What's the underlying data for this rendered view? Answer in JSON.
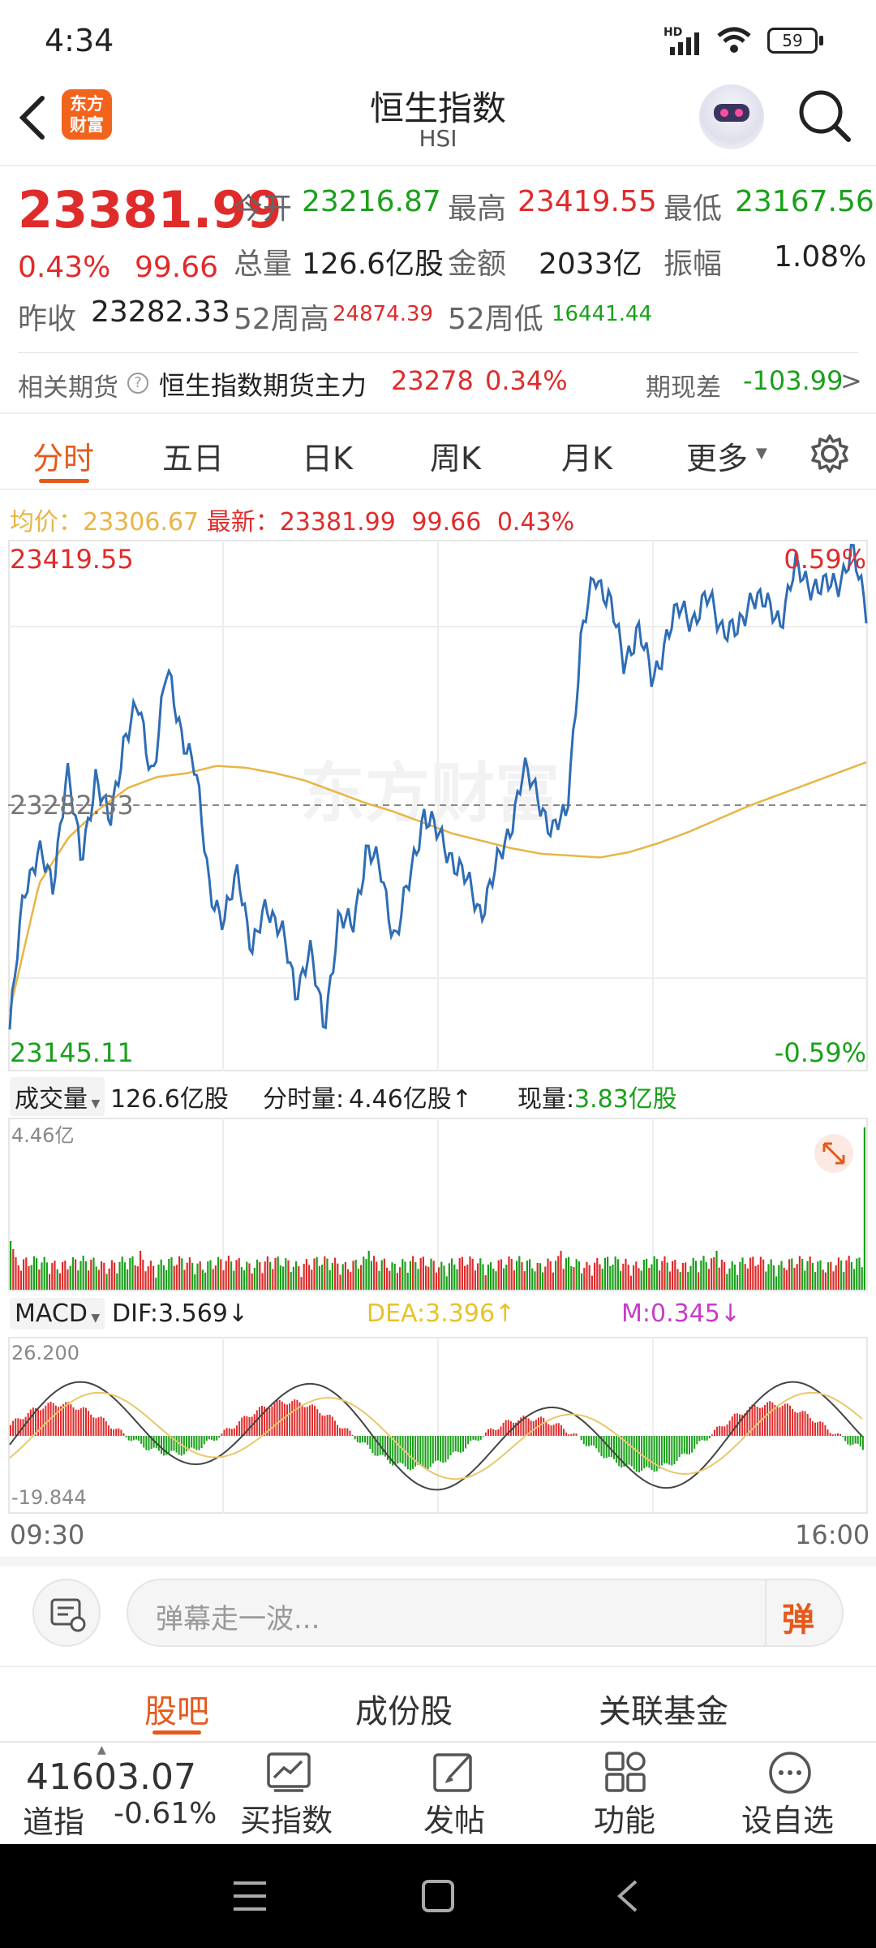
{
  "status": {
    "time": "4:34",
    "network": "HD",
    "battery": "59"
  },
  "header": {
    "title": "恒生指数",
    "subtitle": "HSI",
    "brand_logo_text": "东方财富"
  },
  "quote": {
    "price": "23381.99",
    "change_pct": "0.43%",
    "change": "99.66",
    "open_label": "今开",
    "open": "23216.87",
    "high_label": "最高",
    "high": "23419.55",
    "low_label": "最低",
    "low": "23167.56",
    "volume_label": "总量",
    "volume": "126.6亿股",
    "amount_label": "金额",
    "amount": "2033亿",
    "amplitude_label": "振幅",
    "amplitude": "1.08%",
    "prev_close_label": "昨收",
    "prev_close": "23282.33",
    "w52_high_label": "52周高",
    "w52_high": "24874.39",
    "w52_low_label": "52周低",
    "w52_low": "16441.44"
  },
  "futures": {
    "label": "相关期货",
    "help_icon": "question-circle-icon",
    "name": "恒生指数期货主力",
    "price": "23278",
    "pct": "0.34%",
    "basis_label": "期现差",
    "basis": "-103.99",
    "arrow": ">"
  },
  "tabs": [
    {
      "label": "分时"
    },
    {
      "label": "五日"
    },
    {
      "label": "日K"
    },
    {
      "label": "周K"
    },
    {
      "label": "月K"
    },
    {
      "label": "更多"
    }
  ],
  "info_line": {
    "avg_label": "均价：",
    "avg": "23306.67",
    "latest_label": "最新：",
    "latest": "23381.99",
    "change": "99.66",
    "pct": "0.43%"
  },
  "chart_labels": {
    "top_left": "23419.55",
    "top_right": "0.59%",
    "mid": "23282.33",
    "bottom_left": "23145.11",
    "bottom_right": "-0.59%",
    "watermark": "东方财富"
  },
  "volume_bar": {
    "selector": "成交量",
    "total": "126.6亿股",
    "minute_label": "分时量:",
    "minute": "4.46亿股↑",
    "current_label": "现量:",
    "current": "3.83亿股",
    "max_label": "4.46亿"
  },
  "macd": {
    "selector": "MACD",
    "dif": "DIF:3.569↓",
    "dea": "DEA:3.396↑",
    "m": "M:0.345↓",
    "max": "26.200",
    "min": "-19.844"
  },
  "time_axis": {
    "start": "09:30",
    "end": "16:00"
  },
  "danmu": {
    "placeholder": "弹幕走一波...",
    "send_label": "弹"
  },
  "sub_tabs": [
    {
      "label": "股吧"
    },
    {
      "label": "成份股"
    },
    {
      "label": "关联基金"
    }
  ],
  "bottom": {
    "index_value": "41603.07",
    "index_name": "道指",
    "index_pct": "-0.61%",
    "buy": "买指数",
    "post": "发帖",
    "function": "功能",
    "watchlist": "设自选"
  },
  "chart_data": {
    "type": "line",
    "title": "",
    "y_range": [
      23145.11,
      23419.55
    ],
    "reference_line": 23282.33,
    "x_range": [
      "09:30",
      "16:00"
    ],
    "series": [
      {
        "name": "",
        "color": "#2f6db5",
        "values": [
          23160,
          23235,
          23260,
          23235,
          23305,
          23250,
          23300,
          23270,
          23320,
          23335,
          23300,
          23355,
          23325,
          23300,
          23240,
          23215,
          23250,
          23200,
          23230,
          23215,
          23180,
          23205,
          23160,
          23220,
          23215,
          23260,
          23245,
          23210,
          23240,
          23280,
          23265,
          23255,
          23240,
          23225,
          23245,
          23270,
          23300,
          23290,
          23265,
          23280,
          23370,
          23410,
          23395,
          23360,
          23380,
          23350,
          23375,
          23390,
          23385,
          23395,
          23380,
          23375,
          23400,
          23390,
          23385,
          23410,
          23405,
          23400,
          23405,
          23420,
          23390
        ]
      },
      {
        "name": "",
        "color": "#e8b545",
        "values": [
          23170,
          23240,
          23265,
          23280,
          23292,
          23298,
          23300,
          23304,
          23303,
          23300,
          23296,
          23290,
          23284,
          23279,
          23273,
          23267,
          23263,
          23259,
          23256,
          23255,
          23254,
          23257,
          23262,
          23268,
          23275,
          23282,
          23288,
          23294,
          23300,
          23306
        ]
      }
    ]
  },
  "colors": {
    "up": "#e02b2b",
    "down": "#1aa01a",
    "accent": "#e55a1c",
    "line": "#2f6db5",
    "avg": "#e8b545",
    "macd_dea": "#e8c86a",
    "macd_m": "#c83cc8"
  }
}
